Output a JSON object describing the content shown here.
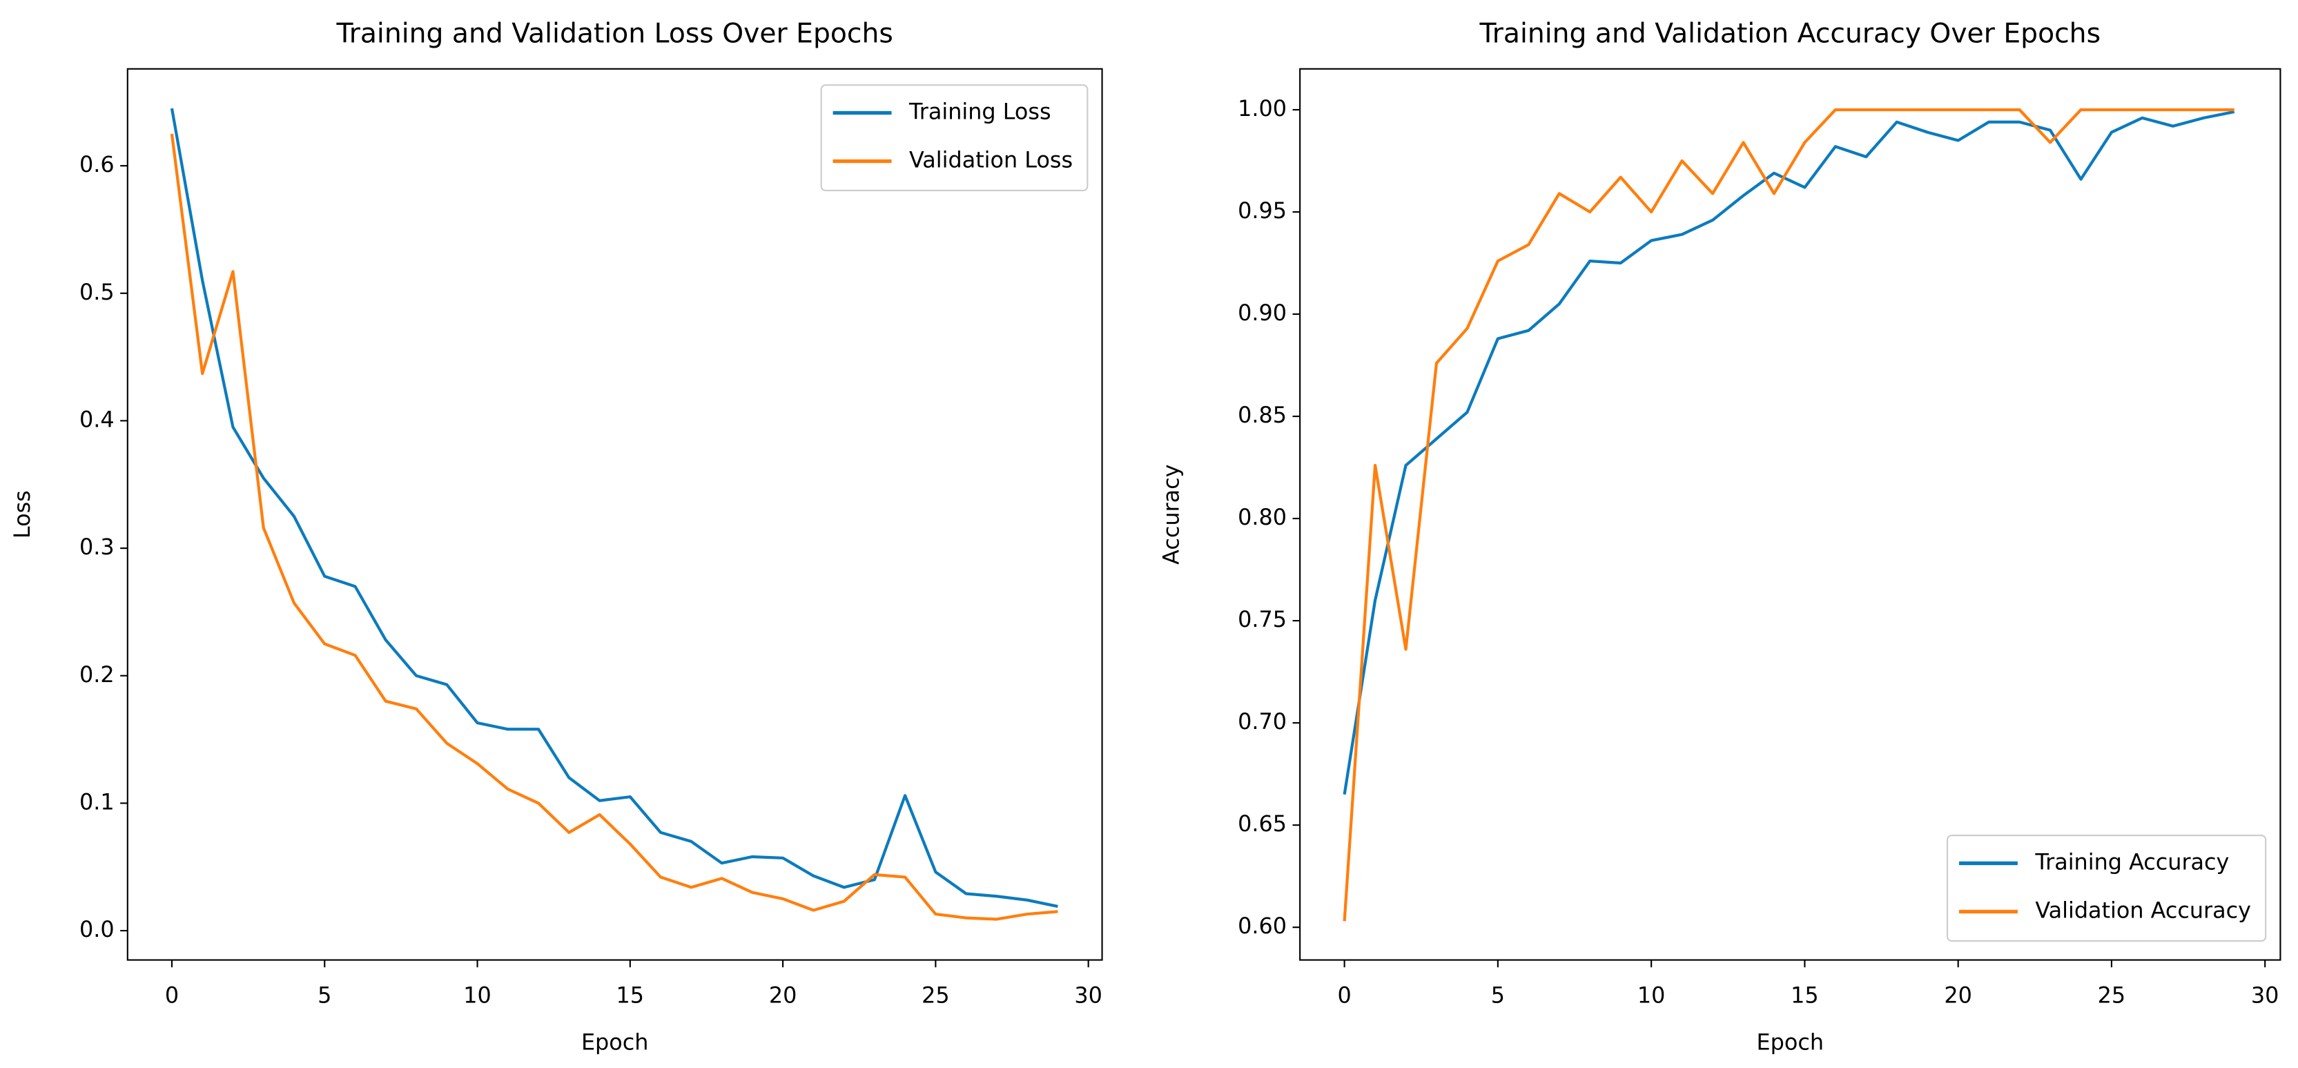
{
  "chart_data": [
    {
      "type": "line",
      "title": "Training and Validation Loss Over Epochs",
      "x_label": "Epoch",
      "y_label": "Loss",
      "x": [
        0,
        1,
        2,
        3,
        4,
        5,
        6,
        7,
        8,
        9,
        10,
        11,
        12,
        13,
        14,
        15,
        16,
        17,
        18,
        19,
        20,
        21,
        22,
        23,
        24,
        25,
        26,
        27,
        28,
        29
      ],
      "series": [
        {
          "name": "Training Loss",
          "color": "#0c7bbd",
          "values": [
            0.645,
            0.51,
            0.395,
            0.355,
            0.325,
            0.278,
            0.27,
            0.228,
            0.2,
            0.193,
            0.163,
            0.158,
            0.158,
            0.12,
            0.102,
            0.105,
            0.077,
            0.07,
            0.053,
            0.058,
            0.057,
            0.043,
            0.034,
            0.04,
            0.106,
            0.046,
            0.029,
            0.027,
            0.024,
            0.019
          ]
        },
        {
          "name": "Validation Loss",
          "color": "#ff7f0e",
          "values": [
            0.625,
            0.437,
            0.517,
            0.316,
            0.257,
            0.225,
            0.216,
            0.18,
            0.174,
            0.147,
            0.131,
            0.111,
            0.1,
            0.077,
            0.091,
            0.068,
            0.042,
            0.034,
            0.041,
            0.03,
            0.025,
            0.016,
            0.023,
            0.044,
            0.042,
            0.013,
            0.01,
            0.009,
            0.013,
            0.015
          ]
        }
      ],
      "xlim": [
        -1.45,
        30.45
      ],
      "xticks": [
        0,
        5,
        10,
        15,
        20,
        25,
        30
      ],
      "ylim": [
        -0.023,
        0.676
      ],
      "yticks": [
        {
          "value": 0,
          "label": "0.0"
        },
        0.1,
        0.2,
        0.3,
        0.4,
        0.5,
        0.6
      ],
      "legend": "upper right"
    },
    {
      "type": "line",
      "title": "Training and Validation Accuracy Over Epochs",
      "x_label": "Epoch",
      "y_label": "Accuracy",
      "x": [
        0,
        1,
        2,
        3,
        4,
        5,
        6,
        7,
        8,
        9,
        10,
        11,
        12,
        13,
        14,
        15,
        16,
        17,
        18,
        19,
        20,
        21,
        22,
        23,
        24,
        25,
        26,
        27,
        28,
        29
      ],
      "series": [
        {
          "name": "Training Accuracy",
          "color": "#0c7bbd",
          "values": [
            0.665,
            0.76,
            0.826,
            0.839,
            0.852,
            0.888,
            0.892,
            0.905,
            0.926,
            0.925,
            0.936,
            0.939,
            0.946,
            0.958,
            0.969,
            0.962,
            0.982,
            0.977,
            0.994,
            0.989,
            0.985,
            0.994,
            0.994,
            0.99,
            0.966,
            0.989,
            0.996,
            0.992,
            0.996,
            0.999
          ]
        },
        {
          "name": "Validation Accuracy",
          "color": "#ff7f0e",
          "values": [
            0.603,
            0.826,
            0.736,
            0.876,
            0.893,
            0.926,
            0.934,
            0.959,
            0.95,
            0.967,
            0.95,
            0.975,
            0.959,
            0.984,
            0.959,
            0.984,
            1.0,
            1.0,
            1.0,
            1.0,
            1.0,
            1.0,
            1.0,
            0.984,
            1.0,
            1.0,
            1.0,
            1.0,
            1.0,
            1.0
          ]
        }
      ],
      "xlim": [
        -1.45,
        30.5
      ],
      "xticks": [
        0,
        5,
        10,
        15,
        20,
        25,
        30
      ],
      "ylim": [
        0.584,
        1.02
      ],
      "yticks": [
        {
          "value": 0.6,
          "label": "0.60"
        },
        0.65,
        {
          "value": 0.7,
          "label": "0.70"
        },
        0.75,
        {
          "value": 0.8,
          "label": "0.80"
        },
        0.85,
        {
          "value": 0.9,
          "label": "0.90"
        },
        0.95,
        {
          "value": 1,
          "label": "1.00"
        }
      ],
      "legend": "lower right"
    }
  ]
}
